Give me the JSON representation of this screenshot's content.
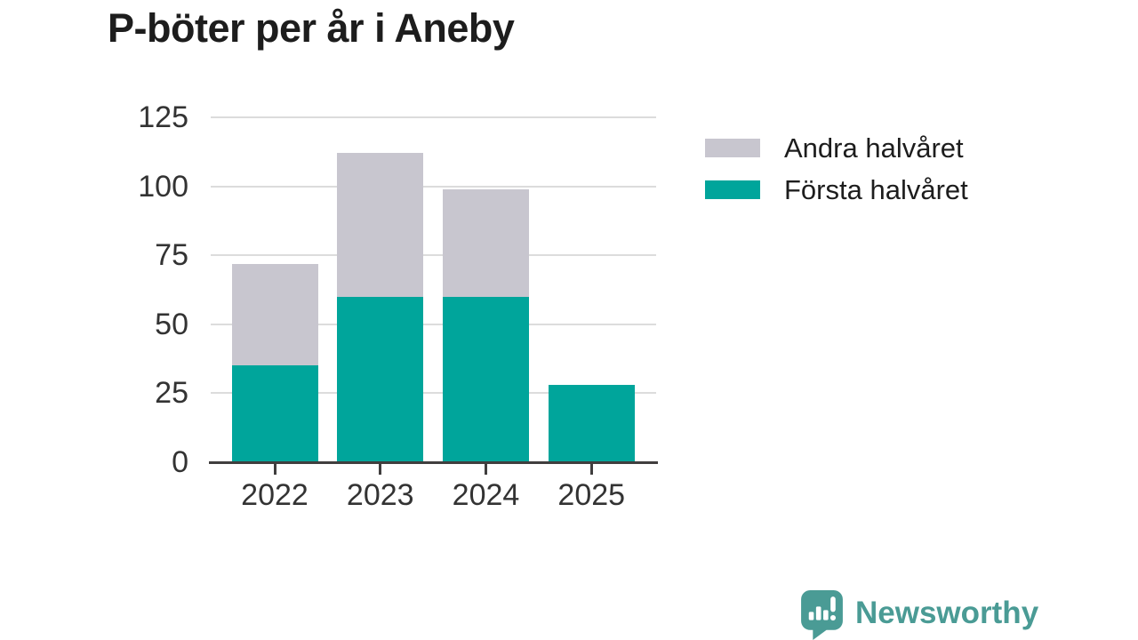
{
  "chart_data": {
    "type": "bar",
    "stacked": true,
    "title": "P-böter per år i Aneby",
    "categories": [
      "2022",
      "2023",
      "2024",
      "2025"
    ],
    "series": [
      {
        "name": "Första halvåret",
        "color": "#00a59b",
        "values": [
          35,
          60,
          60,
          28
        ]
      },
      {
        "name": "Andra halvåret",
        "color": "#c8c6cf",
        "values": [
          37,
          52,
          39,
          0
        ]
      }
    ],
    "y_ticks": [
      "0",
      "25",
      "50",
      "75",
      "100",
      "125"
    ],
    "ylim": [
      0,
      125
    ],
    "grid": "horizontal",
    "legend_position": "right",
    "legend_order": [
      1,
      0
    ]
  },
  "branding": {
    "logo_text": "Newsworthy",
    "logo_icon": "newsworthy-speech-bubble-chart-icon",
    "logo_color": "#4a9b95"
  },
  "colors": {
    "background": "#ffffff",
    "title_text": "#1d1d1d",
    "axis_text": "#333333",
    "gridline": "#dcdcdc",
    "axis_line": "#403e3e"
  }
}
